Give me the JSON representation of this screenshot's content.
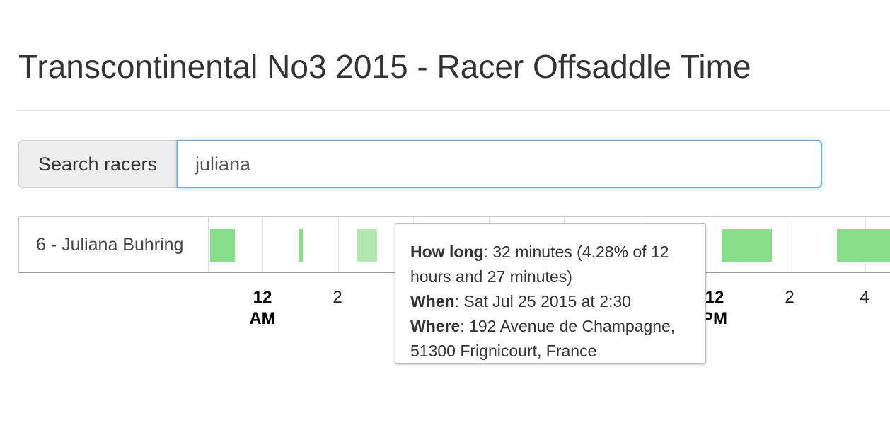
{
  "page": {
    "title": "Transcontinental No3 2015 - Racer Offsaddle Time"
  },
  "search": {
    "label": "Search racers",
    "value": "juliana"
  },
  "racer": {
    "label": "6 - Juliana Buhring"
  },
  "timeline": {
    "ticks": [
      {
        "line1": "12",
        "line2": "AM",
        "bold": true
      },
      {
        "line1": "2",
        "line2": "",
        "bold": false
      },
      {
        "line1": "12",
        "line2": "PM",
        "bold": true
      },
      {
        "line1": "2",
        "line2": "",
        "bold": false
      },
      {
        "line1": "4",
        "line2": "",
        "bold": false
      }
    ],
    "segment_color": "#88dd88",
    "segment_highlight_color": "#b0e8b0"
  },
  "tooltip": {
    "how_long_label": "How long",
    "how_long_value": ": 32 minutes (4.28% of 12 hours and 27 minutes)",
    "when_label": "When",
    "when_value": ": Sat Jul 25 2015 at 2:30",
    "where_label": "Where",
    "where_value": ": 192 Avenue de Champagne, 51300 Frignicourt, France"
  },
  "colors": {
    "input_focus": "#66afe9",
    "text": "#333333"
  }
}
